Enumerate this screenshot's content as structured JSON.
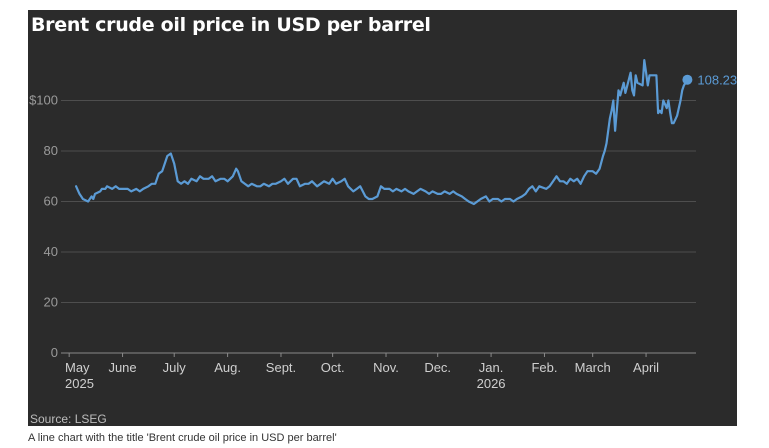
{
  "chart_data": {
    "type": "line",
    "title": "Brent crude oil price in USD per barrel",
    "source": "Source: LSEG",
    "caption": "A line chart with the title 'Brent crude oil price in USD per barrel'",
    "xlabel": "",
    "ylabel": "",
    "ylim": [
      0,
      120
    ],
    "grid": true,
    "line_color": "#5b9bd5",
    "y_ticks": [
      {
        "value": 0,
        "label": "0"
      },
      {
        "value": 20,
        "label": "20"
      },
      {
        "value": 40,
        "label": "40"
      },
      {
        "value": 60,
        "label": "60"
      },
      {
        "value": 80,
        "label": "80"
      },
      {
        "value": 100,
        "label": "$100"
      }
    ],
    "x_ticks": [
      {
        "date": "2025-05-01",
        "label": "May",
        "sublabel": "2025"
      },
      {
        "date": "2025-06-01",
        "label": "June",
        "sublabel": ""
      },
      {
        "date": "2025-07-01",
        "label": "July",
        "sublabel": ""
      },
      {
        "date": "2025-08-01",
        "label": "Aug.",
        "sublabel": ""
      },
      {
        "date": "2025-09-01",
        "label": "Sept.",
        "sublabel": ""
      },
      {
        "date": "2025-10-01",
        "label": "Oct.",
        "sublabel": ""
      },
      {
        "date": "2025-11-01",
        "label": "Nov.",
        "sublabel": ""
      },
      {
        "date": "2025-12-01",
        "label": "Dec.",
        "sublabel": ""
      },
      {
        "date": "2026-01-01",
        "label": "Jan.",
        "sublabel": "2026"
      },
      {
        "date": "2026-02-01",
        "label": "Feb.",
        "sublabel": ""
      },
      {
        "date": "2026-03-01",
        "label": "March",
        "sublabel": ""
      },
      {
        "date": "2026-04-01",
        "label": "April",
        "sublabel": ""
      }
    ],
    "end_label": "108.23",
    "series": [
      {
        "points": [
          [
            "2025-05-05",
            66
          ],
          [
            "2025-05-07",
            63
          ],
          [
            "2025-05-08",
            62
          ],
          [
            "2025-05-09",
            61
          ],
          [
            "2025-05-12",
            60
          ],
          [
            "2025-05-13",
            61
          ],
          [
            "2025-05-14",
            62
          ],
          [
            "2025-05-15",
            61
          ],
          [
            "2025-05-16",
            63
          ],
          [
            "2025-05-19",
            64
          ],
          [
            "2025-05-20",
            65
          ],
          [
            "2025-05-22",
            65
          ],
          [
            "2025-05-23",
            66
          ],
          [
            "2025-05-26",
            65
          ],
          [
            "2025-05-28",
            66
          ],
          [
            "2025-05-30",
            65
          ],
          [
            "2025-06-02",
            65
          ],
          [
            "2025-06-04",
            65
          ],
          [
            "2025-06-06",
            64
          ],
          [
            "2025-06-09",
            65
          ],
          [
            "2025-06-11",
            64
          ],
          [
            "2025-06-13",
            65
          ],
          [
            "2025-06-16",
            66
          ],
          [
            "2025-06-18",
            67
          ],
          [
            "2025-06-20",
            67
          ],
          [
            "2025-06-22",
            71
          ],
          [
            "2025-06-24",
            72
          ],
          [
            "2025-06-26",
            76
          ],
          [
            "2025-06-27",
            78
          ],
          [
            "2025-06-29",
            79
          ],
          [
            "2025-07-01",
            75
          ],
          [
            "2025-07-03",
            68
          ],
          [
            "2025-07-05",
            67
          ],
          [
            "2025-07-07",
            68
          ],
          [
            "2025-07-09",
            67
          ],
          [
            "2025-07-11",
            69
          ],
          [
            "2025-07-14",
            68
          ],
          [
            "2025-07-16",
            70
          ],
          [
            "2025-07-18",
            69
          ],
          [
            "2025-07-21",
            69
          ],
          [
            "2025-07-23",
            70
          ],
          [
            "2025-07-25",
            68
          ],
          [
            "2025-07-28",
            69
          ],
          [
            "2025-07-30",
            69
          ],
          [
            "2025-08-01",
            68
          ],
          [
            "2025-08-04",
            70
          ],
          [
            "2025-08-06",
            73
          ],
          [
            "2025-08-07",
            72
          ],
          [
            "2025-08-09",
            68
          ],
          [
            "2025-08-11",
            67
          ],
          [
            "2025-08-13",
            66
          ],
          [
            "2025-08-15",
            67
          ],
          [
            "2025-08-18",
            66
          ],
          [
            "2025-08-20",
            66
          ],
          [
            "2025-08-22",
            67
          ],
          [
            "2025-08-25",
            66
          ],
          [
            "2025-08-27",
            67
          ],
          [
            "2025-08-29",
            67
          ],
          [
            "2025-09-01",
            68
          ],
          [
            "2025-09-03",
            69
          ],
          [
            "2025-09-05",
            67
          ],
          [
            "2025-09-08",
            69
          ],
          [
            "2025-09-10",
            69
          ],
          [
            "2025-09-12",
            66
          ],
          [
            "2025-09-15",
            67
          ],
          [
            "2025-09-17",
            67
          ],
          [
            "2025-09-19",
            68
          ],
          [
            "2025-09-22",
            66
          ],
          [
            "2025-09-24",
            67
          ],
          [
            "2025-09-26",
            68
          ],
          [
            "2025-09-29",
            67
          ],
          [
            "2025-10-01",
            69
          ],
          [
            "2025-10-03",
            67
          ],
          [
            "2025-10-06",
            68
          ],
          [
            "2025-10-08",
            69
          ],
          [
            "2025-10-10",
            66
          ],
          [
            "2025-10-13",
            64
          ],
          [
            "2025-10-15",
            65
          ],
          [
            "2025-10-17",
            66
          ],
          [
            "2025-10-20",
            62
          ],
          [
            "2025-10-22",
            61
          ],
          [
            "2025-10-24",
            61
          ],
          [
            "2025-10-27",
            62
          ],
          [
            "2025-10-29",
            66
          ],
          [
            "2025-10-31",
            65
          ],
          [
            "2025-11-03",
            65
          ],
          [
            "2025-11-05",
            64
          ],
          [
            "2025-11-07",
            65
          ],
          [
            "2025-11-10",
            64
          ],
          [
            "2025-11-12",
            65
          ],
          [
            "2025-11-14",
            64
          ],
          [
            "2025-11-17",
            63
          ],
          [
            "2025-11-19",
            64
          ],
          [
            "2025-11-21",
            65
          ],
          [
            "2025-11-24",
            64
          ],
          [
            "2025-11-26",
            63
          ],
          [
            "2025-11-28",
            64
          ],
          [
            "2025-12-01",
            63
          ],
          [
            "2025-12-03",
            63
          ],
          [
            "2025-12-05",
            64
          ],
          [
            "2025-12-08",
            63
          ],
          [
            "2025-12-10",
            64
          ],
          [
            "2025-12-12",
            63
          ],
          [
            "2025-12-15",
            62
          ],
          [
            "2025-12-17",
            61
          ],
          [
            "2025-12-19",
            60
          ],
          [
            "2025-12-22",
            59
          ],
          [
            "2025-12-24",
            60
          ],
          [
            "2025-12-26",
            61
          ],
          [
            "2025-12-29",
            62
          ],
          [
            "2025-12-31",
            60
          ],
          [
            "2026-01-02",
            61
          ],
          [
            "2026-01-05",
            61
          ],
          [
            "2026-01-07",
            60
          ],
          [
            "2026-01-09",
            61
          ],
          [
            "2026-01-12",
            61
          ],
          [
            "2026-01-14",
            60
          ],
          [
            "2026-01-16",
            61
          ],
          [
            "2026-01-19",
            62
          ],
          [
            "2026-01-21",
            63
          ],
          [
            "2026-01-23",
            65
          ],
          [
            "2026-01-25",
            66
          ],
          [
            "2026-01-27",
            64
          ],
          [
            "2026-01-29",
            66
          ],
          [
            "2026-02-02",
            65
          ],
          [
            "2026-02-04",
            66
          ],
          [
            "2026-02-06",
            68
          ],
          [
            "2026-02-08",
            70
          ],
          [
            "2026-02-10",
            68
          ],
          [
            "2026-02-12",
            68
          ],
          [
            "2026-02-14",
            67
          ],
          [
            "2026-02-16",
            69
          ],
          [
            "2026-02-18",
            68
          ],
          [
            "2026-02-20",
            69
          ],
          [
            "2026-02-22",
            67
          ],
          [
            "2026-02-24",
            70
          ],
          [
            "2026-02-26",
            72
          ],
          [
            "2026-03-01",
            72
          ],
          [
            "2026-03-03",
            71
          ],
          [
            "2026-03-05",
            73
          ],
          [
            "2026-03-07",
            78
          ],
          [
            "2026-03-08",
            80
          ],
          [
            "2026-03-09",
            83
          ],
          [
            "2026-03-10",
            88
          ],
          [
            "2026-03-11",
            93
          ],
          [
            "2026-03-12",
            96
          ],
          [
            "2026-03-13",
            100
          ],
          [
            "2026-03-14",
            88
          ],
          [
            "2026-03-16",
            104
          ],
          [
            "2026-03-17",
            102
          ],
          [
            "2026-03-19",
            107
          ],
          [
            "2026-03-20",
            103
          ],
          [
            "2026-03-23",
            111
          ],
          [
            "2026-03-24",
            104
          ],
          [
            "2026-03-25",
            102
          ],
          [
            "2026-03-26",
            110
          ],
          [
            "2026-03-27",
            107
          ],
          [
            "2026-03-30",
            106
          ],
          [
            "2026-03-31",
            116
          ],
          [
            "2026-04-01",
            111
          ],
          [
            "2026-04-02",
            106
          ],
          [
            "2026-04-03",
            110
          ],
          [
            "2026-04-06",
            110
          ],
          [
            "2026-04-07",
            110
          ],
          [
            "2026-04-08",
            95
          ],
          [
            "2026-04-09",
            96
          ],
          [
            "2026-04-10",
            95
          ],
          [
            "2026-04-11",
            100
          ],
          [
            "2026-04-13",
            97
          ],
          [
            "2026-04-14",
            100
          ],
          [
            "2026-04-15",
            95
          ],
          [
            "2026-04-16",
            91
          ],
          [
            "2026-04-17",
            91
          ],
          [
            "2026-04-19",
            94
          ],
          [
            "2026-04-21",
            100
          ],
          [
            "2026-04-22",
            104
          ],
          [
            "2026-04-23",
            106
          ],
          [
            "2026-04-25",
            108.23
          ]
        ]
      }
    ]
  }
}
